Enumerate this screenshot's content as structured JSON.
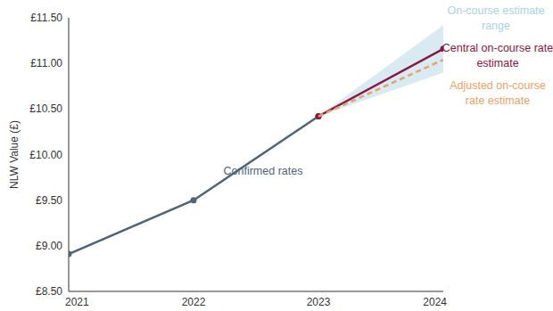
{
  "chart_data": {
    "type": "line",
    "y_label": "NLW Value (£)",
    "x": [
      2021,
      2022,
      2023,
      2024
    ],
    "xlim": [
      2021,
      2024
    ],
    "xticks": [
      2021,
      2022,
      2023,
      2024
    ],
    "ylim": [
      8.5,
      11.5
    ],
    "yticks": [
      {
        "value": 8.5,
        "label": "£8.50"
      },
      {
        "value": 9.0,
        "label": "£9.00"
      },
      {
        "value": 9.5,
        "label": "£9.50"
      },
      {
        "value": 10.0,
        "label": "£10.00"
      },
      {
        "value": 10.5,
        "label": "£10.50"
      },
      {
        "value": 11.0,
        "label": "£11.00"
      },
      {
        "value": 11.5,
        "label": "£11.50"
      }
    ],
    "grid": false,
    "series": [
      {
        "name": "Confirmed rates",
        "type": "line",
        "color": "#4f6479",
        "marker": "circle",
        "line_style": "solid",
        "values": [
          8.91,
          9.5,
          10.42,
          null
        ]
      },
      {
        "name": "Central on-course rate estimate",
        "type": "line",
        "color": "#8c1541",
        "marker": "circle",
        "line_style": "solid",
        "values": [
          null,
          null,
          10.42,
          11.16
        ]
      },
      {
        "name": "Adjusted on-course rate estimate",
        "type": "line",
        "color": "#eba267",
        "marker": "none",
        "line_style": "dashed",
        "values": [
          null,
          null,
          10.42,
          11.04
        ]
      },
      {
        "name": "On-course estimate range",
        "type": "band",
        "color": "#d8ebf3",
        "values": [
          null,
          null,
          10.42,
          11.42
        ],
        "lower": [
          null,
          null,
          10.42,
          10.9
        ]
      }
    ]
  }
}
